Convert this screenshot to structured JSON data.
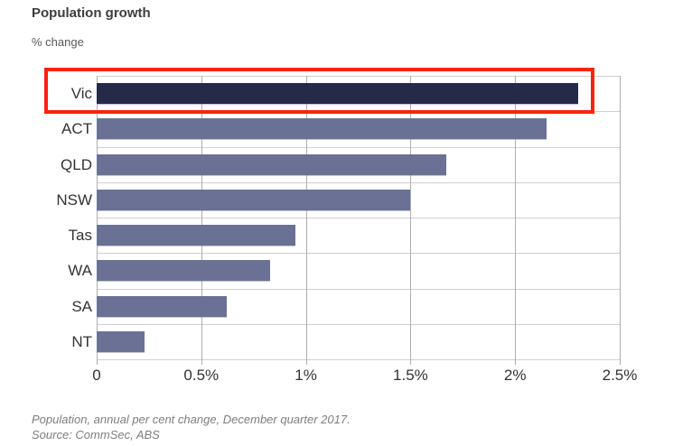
{
  "header": {
    "title": "Population growth",
    "subtitle": "% change"
  },
  "chart_data": {
    "type": "bar",
    "orientation": "horizontal",
    "title": "Population growth",
    "ylabel": "% change",
    "categories": [
      "Vic",
      "ACT",
      "QLD",
      "NSW",
      "Tas",
      "WA",
      "SA",
      "NT"
    ],
    "values": [
      2.3,
      2.15,
      1.67,
      1.5,
      0.95,
      0.83,
      0.62,
      0.23
    ],
    "xlim": [
      0,
      2.5
    ],
    "xticks": [
      "0",
      "0.5%",
      "1%",
      "1.5%",
      "2%",
      "2.5%"
    ],
    "xtick_values": [
      0,
      0.5,
      1.0,
      1.5,
      2.0,
      2.5
    ],
    "grid": "both",
    "annotation": {
      "type": "red-box",
      "highlighted_category": "Vic"
    },
    "colors": {
      "bar": "#6a7195",
      "highlight_bar": "#242a47",
      "annotation_box": "#f8230f",
      "gridline_vertical": "#aeaeae",
      "gridline_horizontal": "#cfcfcf"
    }
  },
  "footer": {
    "line1": "Population, annual per cent change, December quarter 2017.",
    "line2": "Source: CommSec, ABS"
  }
}
